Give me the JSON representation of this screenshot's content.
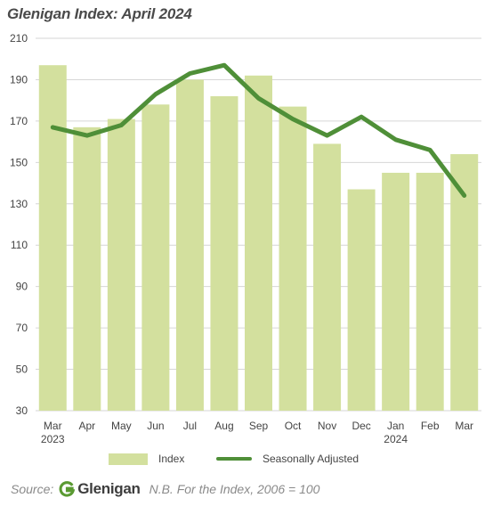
{
  "title": "Glenigan Index: April 2024",
  "chart_data": {
    "type": "bar",
    "categories": [
      "Mar",
      "Apr",
      "May",
      "Jun",
      "Jul",
      "Aug",
      "Sep",
      "Oct",
      "Nov",
      "Dec",
      "Jan",
      "Feb",
      "Mar"
    ],
    "year_labels": [
      "2023",
      "",
      "",
      "",
      "",
      "",
      "",
      "",
      "",
      "",
      "2024",
      "",
      ""
    ],
    "series": [
      {
        "name": "Index",
        "type": "bar",
        "color": "#d3e09e",
        "values": [
          197,
          167,
          171,
          178,
          190,
          182,
          192,
          177,
          159,
          137,
          145,
          145,
          154
        ]
      },
      {
        "name": "Seasonally Adjusted",
        "type": "line",
        "color": "#4f8f38",
        "values": [
          167,
          163,
          168,
          183,
          193,
          197,
          181,
          171,
          163,
          172,
          161,
          156,
          134
        ]
      }
    ],
    "y_ticks": [
      30,
      50,
      70,
      90,
      110,
      130,
      150,
      170,
      190,
      210
    ],
    "ylim": [
      30,
      210
    ],
    "grid": true,
    "legend_position": "bottom"
  },
  "legend": {
    "index_label": "Index",
    "sa_label": "Seasonally Adjusted"
  },
  "footer": {
    "source_label": "Source:",
    "logo_text": "Glenigan",
    "note": "N.B. For the Index, 2006 = 100"
  }
}
